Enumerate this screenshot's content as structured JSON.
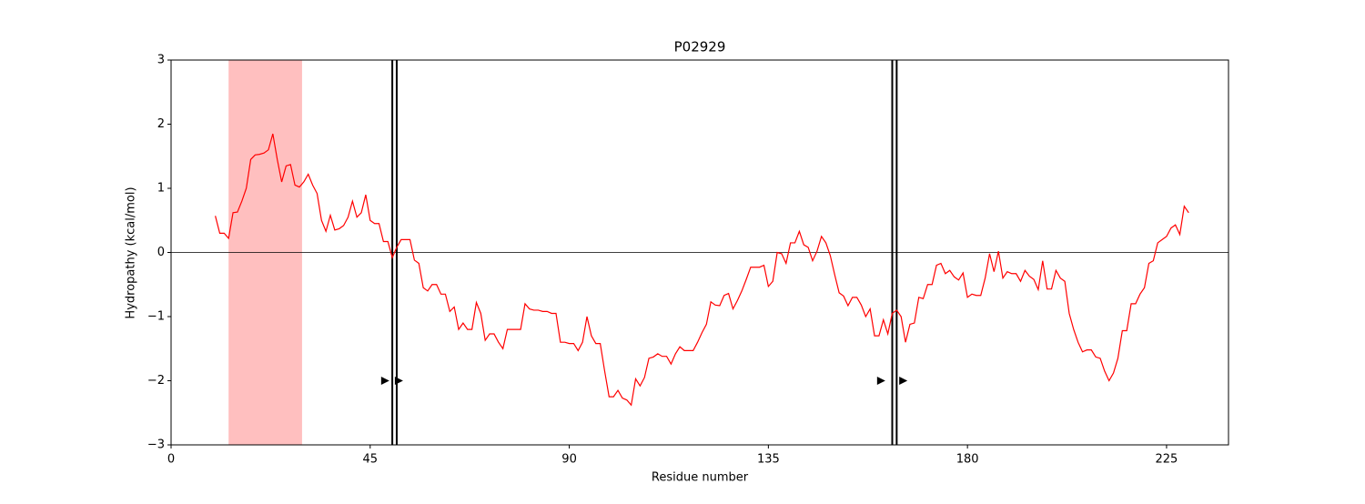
{
  "chart_data": {
    "type": "line",
    "title": "P02929",
    "xlabel": "Residue number",
    "ylabel": "Hydropathy (kcal/mol)",
    "x": [
      10,
      11,
      12,
      13,
      14,
      15,
      16,
      17,
      18,
      19,
      20,
      21,
      22,
      23,
      24,
      25,
      26,
      27,
      28,
      29,
      30,
      31,
      32,
      33,
      34,
      35,
      36,
      37,
      38,
      39,
      40,
      41,
      42,
      43,
      44,
      45,
      46,
      47,
      48,
      49,
      50,
      51,
      52,
      53,
      54,
      55,
      56,
      57,
      58,
      59,
      60,
      61,
      62,
      63,
      64,
      65,
      66,
      67,
      68,
      69,
      70,
      71,
      72,
      73,
      74,
      75,
      76,
      77,
      78,
      79,
      80,
      81,
      82,
      83,
      84,
      85,
      86,
      87,
      88,
      89,
      90,
      91,
      92,
      93,
      94,
      95,
      96,
      97,
      98,
      99,
      100,
      101,
      102,
      103,
      104,
      105,
      106,
      107,
      108,
      109,
      110,
      111,
      112,
      113,
      114,
      115,
      116,
      117,
      118,
      119,
      120,
      121,
      122,
      123,
      124,
      125,
      126,
      127,
      128,
      129,
      130,
      131,
      132,
      133,
      134,
      135,
      136,
      137,
      138,
      139,
      140,
      141,
      142,
      143,
      144,
      145,
      146,
      147,
      148,
      149,
      150,
      151,
      152,
      153,
      154,
      155,
      156,
      157,
      158,
      159,
      160,
      161,
      162,
      163,
      164,
      165,
      166,
      167,
      168,
      169,
      170,
      171,
      172,
      173,
      174,
      175,
      176,
      177,
      178,
      179,
      180,
      181,
      182,
      183,
      184,
      185,
      186,
      187,
      188,
      189,
      190,
      191,
      192,
      193,
      194,
      195,
      196,
      197,
      198,
      199,
      200,
      201,
      202,
      203,
      204,
      205,
      206,
      207,
      208,
      209,
      210,
      211,
      212,
      213,
      214,
      215,
      216,
      217,
      218,
      219,
      220,
      221,
      222,
      223,
      224,
      225,
      226,
      227,
      228,
      229,
      230
    ],
    "series": [
      {
        "color": "#ff0000",
        "values": [
          0.57,
          0.3,
          0.3,
          0.22,
          0.62,
          0.63,
          0.8,
          1.0,
          1.45,
          1.52,
          1.53,
          1.55,
          1.6,
          1.85,
          1.45,
          1.1,
          1.35,
          1.37,
          1.05,
          1.02,
          1.1,
          1.22,
          1.05,
          0.92,
          0.5,
          0.33,
          0.58,
          0.35,
          0.37,
          0.42,
          0.55,
          0.8,
          0.55,
          0.62,
          0.9,
          0.5,
          0.45,
          0.45,
          0.17,
          0.17,
          -0.08,
          0.08,
          0.2,
          0.2,
          0.2,
          -0.12,
          -0.17,
          -0.55,
          -0.6,
          -0.5,
          -0.5,
          -0.65,
          -0.65,
          -0.92,
          -0.85,
          -1.2,
          -1.1,
          -1.2,
          -1.2,
          -0.78,
          -0.95,
          -1.37,
          -1.27,
          -1.27,
          -1.4,
          -1.5,
          -1.2,
          -1.2,
          -1.2,
          -1.2,
          -0.8,
          -0.88,
          -0.9,
          -0.9,
          -0.92,
          -0.92,
          -0.95,
          -0.95,
          -1.4,
          -1.4,
          -1.42,
          -1.42,
          -1.53,
          -1.4,
          -1.0,
          -1.3,
          -1.42,
          -1.42,
          -1.85,
          -2.25,
          -2.25,
          -2.15,
          -2.27,
          -2.3,
          -2.38,
          -1.97,
          -2.08,
          -1.95,
          -1.65,
          -1.63,
          -1.58,
          -1.62,
          -1.62,
          -1.74,
          -1.58,
          -1.47,
          -1.53,
          -1.53,
          -1.53,
          -1.4,
          -1.25,
          -1.12,
          -0.77,
          -0.82,
          -0.83,
          -0.67,
          -0.64,
          -0.88,
          -0.75,
          -0.6,
          -0.42,
          -0.23,
          -0.23,
          -0.23,
          -0.2,
          -0.53,
          -0.45,
          0.0,
          -0.02,
          -0.17,
          0.15,
          0.15,
          0.33,
          0.12,
          0.08,
          -0.13,
          0.02,
          0.25,
          0.15,
          -0.05,
          -0.35,
          -0.63,
          -0.68,
          -0.83,
          -0.7,
          -0.7,
          -0.82,
          -1.0,
          -0.88,
          -1.3,
          -1.3,
          -1.05,
          -1.27,
          -0.95,
          -0.9,
          -1.0,
          -1.4,
          -1.12,
          -1.1,
          -0.7,
          -0.72,
          -0.5,
          -0.5,
          -0.2,
          -0.17,
          -0.33,
          -0.28,
          -0.38,
          -0.43,
          -0.32,
          -0.7,
          -0.65,
          -0.67,
          -0.67,
          -0.4,
          -0.02,
          -0.3,
          0.02,
          -0.4,
          -0.3,
          -0.33,
          -0.33,
          -0.45,
          -0.28,
          -0.37,
          -0.42,
          -0.58,
          -0.13,
          -0.57,
          -0.57,
          -0.28,
          -0.4,
          -0.45,
          -0.95,
          -1.2,
          -1.4,
          -1.55,
          -1.52,
          -1.52,
          -1.63,
          -1.65,
          -1.85,
          -2.0,
          -1.88,
          -1.65,
          -1.22,
          -1.22,
          -0.8,
          -0.8,
          -0.65,
          -0.55,
          -0.17,
          -0.13,
          0.15,
          0.2,
          0.25,
          0.38,
          0.43,
          0.28,
          0.72,
          0.62
        ]
      }
    ],
    "spans": [
      {
        "start": 13,
        "end": 29.6,
        "color": "#ffbfbf"
      }
    ],
    "vlines": [
      50,
      51,
      163,
      164
    ],
    "hline": 0,
    "markers": [
      {
        "x": 48.3,
        "y": -2
      },
      {
        "x": 51.4,
        "y": -2
      },
      {
        "x": 160.4,
        "y": -2
      },
      {
        "x": 165.4,
        "y": -2
      }
    ],
    "xlim": [
      0,
      239
    ],
    "ylim": [
      -3,
      3
    ],
    "xticks": [
      0,
      45,
      90,
      135,
      180,
      225
    ],
    "yticks": [
      {
        "value": -3,
        "label": "−3"
      },
      {
        "value": -2,
        "label": "−2"
      },
      {
        "value": -1,
        "label": "−1"
      },
      0,
      1,
      2,
      3
    ]
  }
}
